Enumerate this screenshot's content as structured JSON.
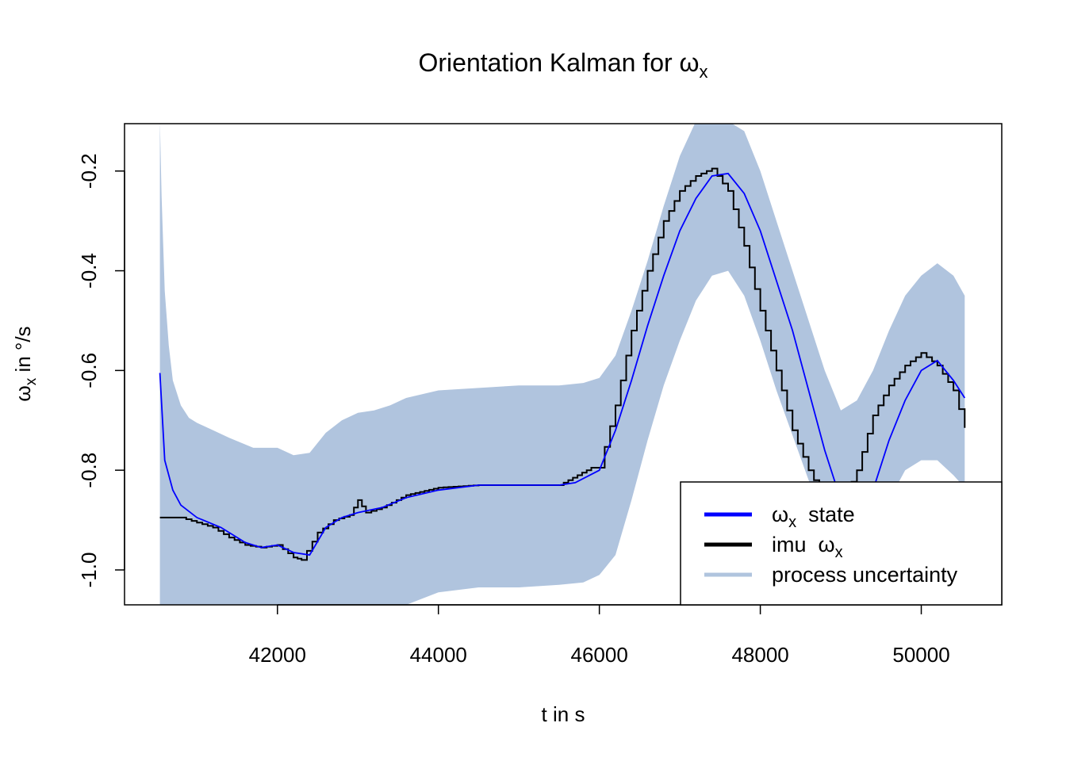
{
  "chart_data": {
    "type": "line",
    "title": "Orientation Kalman for ",
    "title_symbol": "ω",
    "title_sub": "x",
    "xlabel": "t in s",
    "ylabel_symbol": "ω",
    "ylabel_sub": "x",
    "ylabel_rest": " in °/s",
    "xlim": [
      40100,
      51000
    ],
    "ylim": [
      -1.07,
      -0.105
    ],
    "xticks": [
      42000,
      44000,
      46000,
      48000,
      50000
    ],
    "xtick_labels": [
      "42000",
      "44000",
      "46000",
      "48000",
      "50000"
    ],
    "yticks": [
      -1.0,
      -0.8,
      -0.6,
      -0.4,
      -0.2
    ],
    "ytick_labels": [
      "-1.0",
      "-0.8",
      "-0.6",
      "-0.4",
      "-0.2"
    ],
    "grid": false,
    "legend_position": "bottom-right",
    "legend": [
      {
        "symbol": "ω",
        "sub": "x",
        "rest": "  state",
        "color": "#0000ff"
      },
      {
        "prefix": "imu  ",
        "symbol": "ω",
        "sub": "x",
        "color": "#000000"
      },
      {
        "text": "process uncertainty",
        "color": "#b0c4de"
      }
    ],
    "colors": {
      "state": "#0000ff",
      "imu": "#000000",
      "band": "#b0c4de"
    },
    "series": [
      {
        "key": "state",
        "x": [
          40540,
          40600,
          40700,
          40800,
          41000,
          41300,
          41600,
          41800,
          42000,
          42200,
          42400,
          42600,
          42800,
          43000,
          43300,
          43600,
          44000,
          44500,
          45000,
          45500,
          45700,
          46000,
          46200,
          46400,
          46600,
          46800,
          47000,
          47200,
          47400,
          47600,
          47800,
          48000,
          48200,
          48400,
          48600,
          48800,
          49000,
          49200,
          49400,
          49600,
          49800,
          50000,
          50200,
          50400,
          50540
        ],
        "y": [
          -0.605,
          -0.78,
          -0.84,
          -0.87,
          -0.895,
          -0.915,
          -0.945,
          -0.955,
          -0.95,
          -0.965,
          -0.97,
          -0.915,
          -0.895,
          -0.885,
          -0.875,
          -0.855,
          -0.84,
          -0.83,
          -0.83,
          -0.83,
          -0.825,
          -0.8,
          -0.72,
          -0.62,
          -0.51,
          -0.41,
          -0.32,
          -0.255,
          -0.21,
          -0.205,
          -0.245,
          -0.32,
          -0.42,
          -0.52,
          -0.64,
          -0.76,
          -0.86,
          -0.89,
          -0.84,
          -0.74,
          -0.66,
          -0.6,
          -0.58,
          -0.62,
          -0.655
        ]
      },
      {
        "key": "imu",
        "x": [
          40540,
          40800,
          41000,
          41200,
          41400,
          41600,
          41800,
          42000,
          42200,
          42300,
          42500,
          42700,
          42900,
          43000,
          43100,
          43300,
          43600,
          44000,
          44500,
          45000,
          45500,
          45900,
          46000,
          46200,
          46400,
          46600,
          46800,
          47000,
          47200,
          47400,
          47600,
          47800,
          48000,
          48200,
          48400,
          48600,
          48800,
          49000,
          49200,
          49400,
          49600,
          49800,
          50000,
          50200,
          50400,
          50540
        ],
        "y": [
          -0.895,
          -0.895,
          -0.905,
          -0.915,
          -0.935,
          -0.95,
          -0.955,
          -0.95,
          -0.975,
          -0.98,
          -0.925,
          -0.9,
          -0.89,
          -0.86,
          -0.885,
          -0.875,
          -0.85,
          -0.835,
          -0.83,
          -0.83,
          -0.83,
          -0.795,
          -0.795,
          -0.67,
          -0.52,
          -0.4,
          -0.3,
          -0.24,
          -0.21,
          -0.195,
          -0.24,
          -0.35,
          -0.48,
          -0.6,
          -0.72,
          -0.8,
          -0.86,
          -0.87,
          -0.8,
          -0.69,
          -0.63,
          -0.59,
          -0.565,
          -0.59,
          -0.64,
          -0.715
        ]
      }
    ],
    "band": {
      "x": [
        40540,
        40560,
        40600,
        40650,
        40700,
        40800,
        40900,
        41000,
        41200,
        41400,
        41700,
        42000,
        42200,
        42400,
        42600,
        42800,
        43000,
        43200,
        43400,
        43600,
        44000,
        44500,
        45000,
        45500,
        45800,
        46000,
        46200,
        46400,
        46600,
        46800,
        47000,
        47200,
        47400,
        47600,
        47800,
        48000,
        48200,
        48400,
        48600,
        48800,
        49000,
        49200,
        49400,
        49600,
        49800,
        50000,
        50200,
        50400,
        50540
      ],
      "upper": [
        -0.1,
        -0.25,
        -0.44,
        -0.55,
        -0.62,
        -0.67,
        -0.695,
        -0.705,
        -0.72,
        -0.735,
        -0.755,
        -0.755,
        -0.77,
        -0.765,
        -0.725,
        -0.7,
        -0.685,
        -0.68,
        -0.67,
        -0.655,
        -0.64,
        -0.635,
        -0.63,
        -0.63,
        -0.625,
        -0.615,
        -0.57,
        -0.48,
        -0.38,
        -0.27,
        -0.17,
        -0.1,
        -0.1,
        -0.1,
        -0.12,
        -0.2,
        -0.3,
        -0.4,
        -0.5,
        -0.6,
        -0.68,
        -0.66,
        -0.6,
        -0.52,
        -0.45,
        -0.41,
        -0.385,
        -0.41,
        -0.45
      ],
      "lower": [
        -1.07,
        -1.07,
        -1.07,
        -1.07,
        -1.07,
        -1.07,
        -1.07,
        -1.07,
        -1.07,
        -1.07,
        -1.07,
        -1.07,
        -1.07,
        -1.07,
        -1.07,
        -1.07,
        -1.07,
        -1.07,
        -1.07,
        -1.07,
        -1.045,
        -1.035,
        -1.035,
        -1.03,
        -1.025,
        -1.01,
        -0.97,
        -0.86,
        -0.74,
        -0.63,
        -0.54,
        -0.46,
        -0.41,
        -0.4,
        -0.45,
        -0.54,
        -0.64,
        -0.73,
        -0.82,
        -0.9,
        -0.96,
        -1.0,
        -0.95,
        -0.86,
        -0.8,
        -0.78,
        -0.78,
        -0.81,
        -0.835
      ]
    }
  }
}
